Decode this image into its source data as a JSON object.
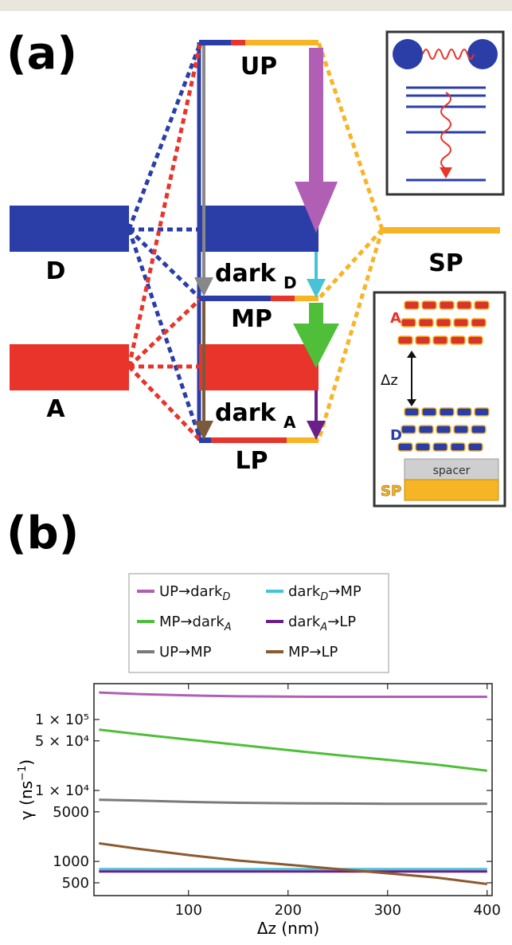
{
  "panel_a": {
    "label": "(a)",
    "levels": {
      "up": "UP",
      "mp": "MP",
      "lp": "LP",
      "donor": "D",
      "acceptor": "A",
      "sp": "SP",
      "dark_d_main": "dark",
      "dark_d_sub": "D",
      "dark_a_main": "dark",
      "dark_a_sub": "A"
    },
    "inset": {
      "a_label": "A",
      "d_label": "D",
      "dz_label": "Δz",
      "spacer_label": "spacer",
      "sp_label": "SP"
    },
    "colors": {
      "donor": "#2b3ea8",
      "acceptor": "#e8342a",
      "sp": "#f7b526",
      "arrow_up_darkd": "#b05fb5",
      "arrow_mp_darka": "#4fbf3a",
      "arrow_darkd_mp": "#46c4d6",
      "arrow_darka_lp": "#6b1f8a",
      "arrow_up_mp": "#888888",
      "arrow_mp_lp": "#7a5a3a"
    }
  },
  "panel_b": {
    "label": "(b)"
  },
  "chart_data": {
    "type": "line",
    "xlabel": "Δz (nm)",
    "ylabel_main": "γ (ns",
    "ylabel_sup": "−1",
    "ylabel_close": ")",
    "yscale": "log",
    "xlim": [
      5,
      405
    ],
    "ylim": [
      330,
      320000
    ],
    "x_ticks": [
      100,
      200,
      300,
      400
    ],
    "x_tick_labels": [
      "100",
      "200",
      "300",
      "400"
    ],
    "y_ticks": [
      500,
      1000,
      5000,
      10000,
      50000,
      100000
    ],
    "y_tick_labels": [
      "500",
      "1000",
      "5000",
      "1 × 10⁴",
      "5 × 10⁴",
      "1 × 10⁵"
    ],
    "grid": false,
    "legend_placement": "top",
    "x": [
      10,
      50,
      100,
      150,
      200,
      250,
      300,
      350,
      400
    ],
    "series": [
      {
        "name_main": "UP→dark",
        "name_sub": "D",
        "color": "#b05fb5",
        "values": [
          240000,
          228000,
          218000,
          212000,
          210000,
          209000,
          209000,
          209000,
          209000
        ]
      },
      {
        "name_main": "dark",
        "name_sub": "D",
        "name_tail": "→MP",
        "color": "#46c4d6",
        "values": [
          780,
          780,
          780,
          780,
          780,
          780,
          780,
          780,
          780
        ]
      },
      {
        "name_main": "MP→dark",
        "name_sub": "A",
        "color": "#4fbf3a",
        "values": [
          72000,
          62000,
          52000,
          44000,
          37000,
          31500,
          27000,
          23000,
          19000
        ]
      },
      {
        "name_main": "dark",
        "name_sub": "A",
        "name_tail": "→LP",
        "color": "#6b1f8a",
        "values": [
          720,
          720,
          720,
          720,
          720,
          720,
          720,
          720,
          720
        ]
      },
      {
        "name_main": "UP→MP",
        "color": "#7a7a7a",
        "values": [
          7400,
          7200,
          6900,
          6700,
          6600,
          6550,
          6500,
          6500,
          6500
        ]
      },
      {
        "name_main": "MP→LP",
        "color": "#8c5a2e",
        "values": [
          1800,
          1500,
          1230,
          1030,
          900,
          780,
          680,
          590,
          480
        ]
      }
    ]
  }
}
